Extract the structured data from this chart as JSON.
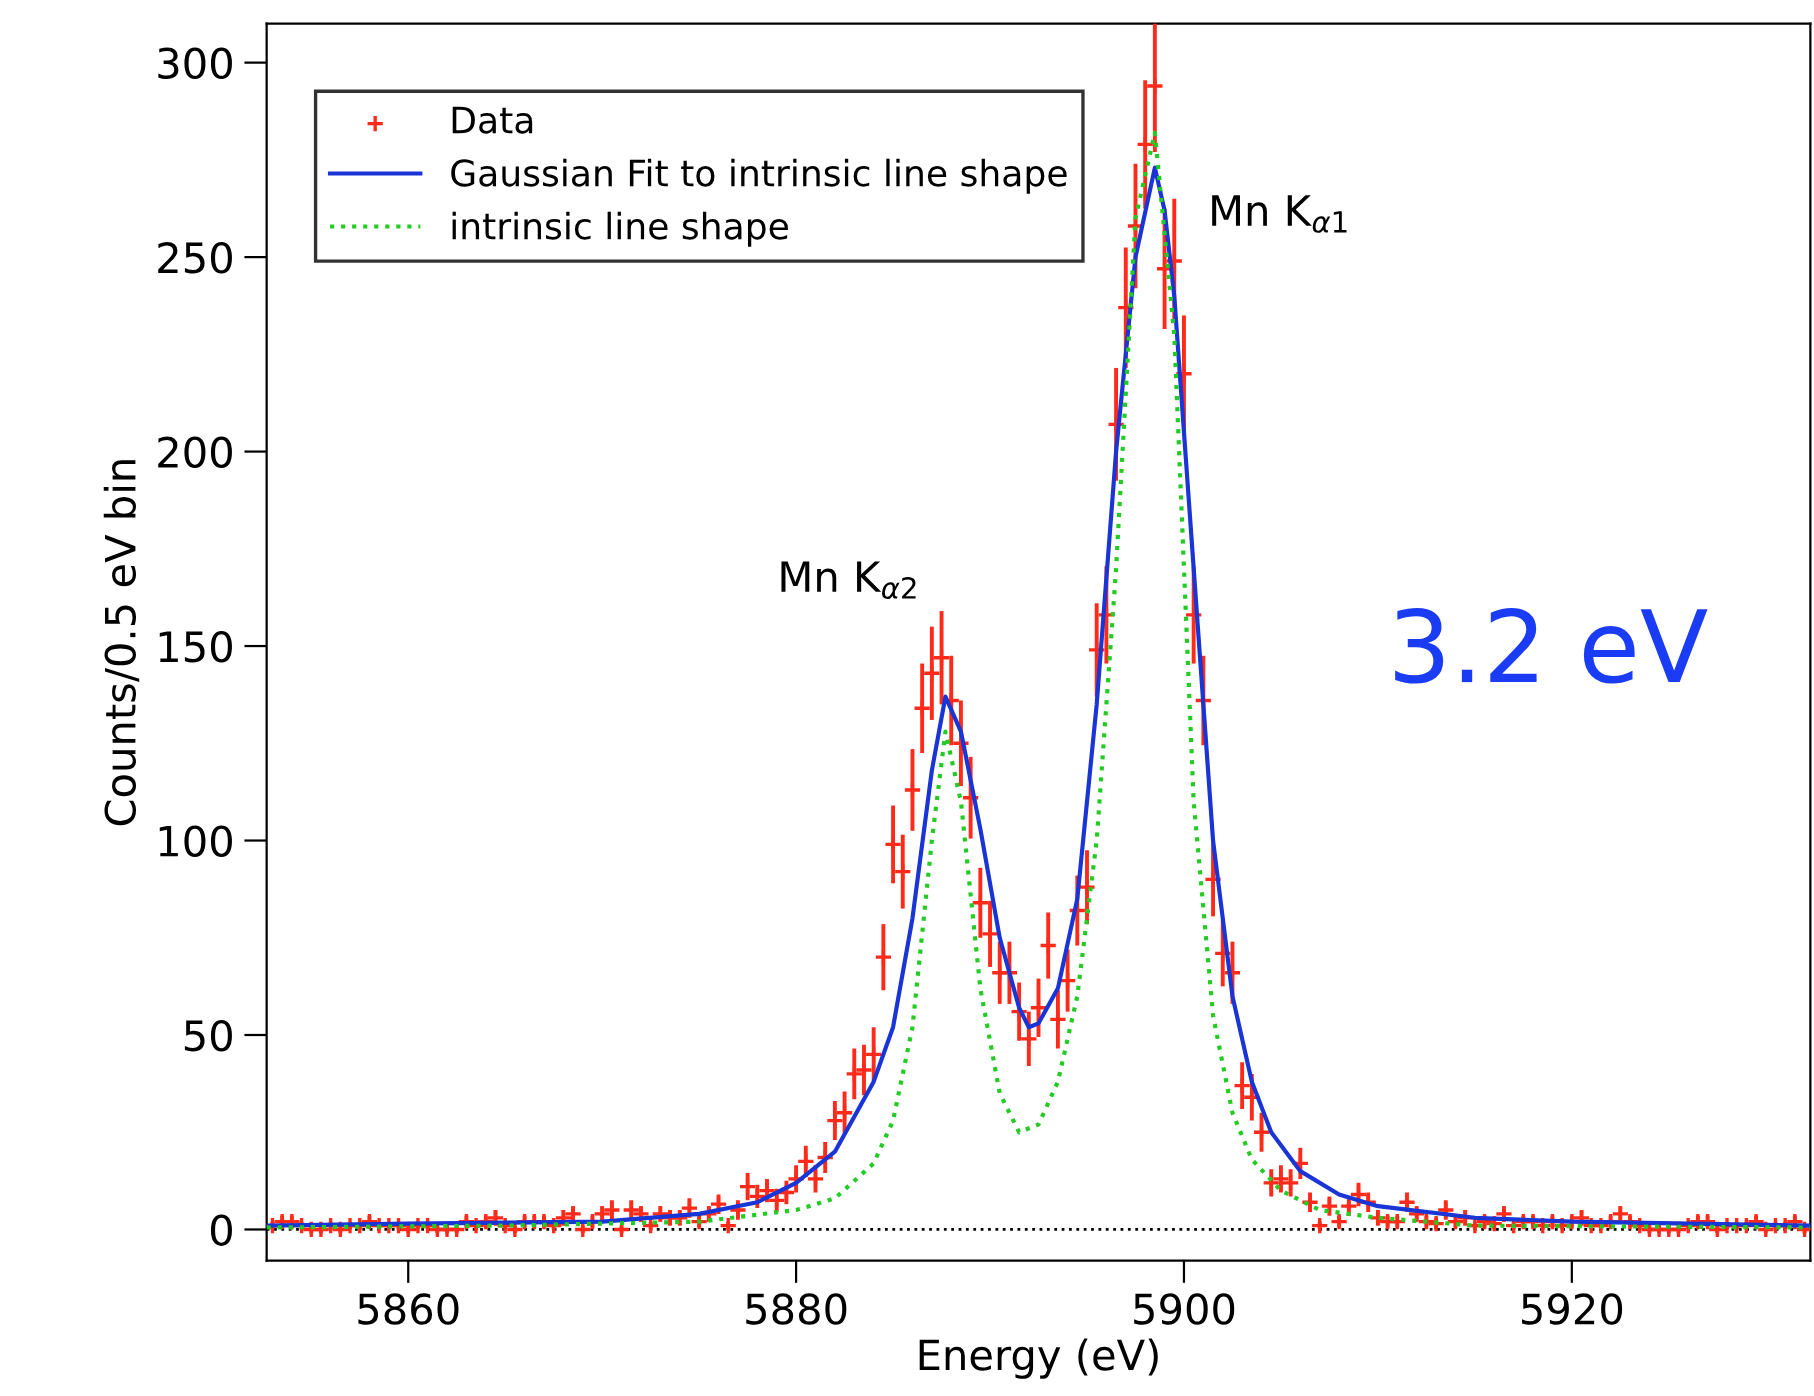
{
  "chart_data": {
    "type": "scatter",
    "xlabel": "Energy (eV)",
    "ylabel": "Counts/0.5 eV bin",
    "xlim": [
      5852.7,
      5932.3
    ],
    "ylim": [
      -8,
      310
    ],
    "xticks": [
      5860,
      5880,
      5900,
      5920
    ],
    "yticks": [
      0,
      50,
      100,
      150,
      200,
      250,
      300
    ],
    "grid": false,
    "legend": "top left",
    "ref_lines": [
      {
        "axis": "y",
        "value": 0,
        "label": null,
        "color": "#000000",
        "line_style": "dotted"
      }
    ],
    "annotations": [
      "Mn K$_{α2}$",
      "Mn K$_{α1}$",
      "3.2 eV"
    ],
    "series": [
      {
        "name": "Data",
        "marker": "cross",
        "color": "#ff2a1a",
        "x": [
          5853.0,
          5853.5,
          5854.0,
          5854.5,
          5855.0,
          5855.5,
          5856.0,
          5856.5,
          5857.0,
          5857.5,
          5858.0,
          5858.5,
          5859.0,
          5859.5,
          5860.0,
          5860.5,
          5861.0,
          5861.5,
          5862.0,
          5862.5,
          5863.0,
          5863.5,
          5864.0,
          5864.5,
          5865.0,
          5865.5,
          5866.0,
          5866.5,
          5867.0,
          5867.5,
          5868.0,
          5868.5,
          5869.0,
          5869.5,
          5870.0,
          5870.5,
          5871.0,
          5871.5,
          5872.0,
          5872.5,
          5873.0,
          5873.5,
          5874.0,
          5874.5,
          5875.0,
          5875.5,
          5876.0,
          5876.5,
          5877.0,
          5877.5,
          5878.0,
          5878.5,
          5879.0,
          5879.5,
          5880.0,
          5880.5,
          5881.0,
          5881.5,
          5882.0,
          5882.5,
          5883.0,
          5883.5,
          5884.0,
          5884.5,
          5885.0,
          5885.5,
          5886.0,
          5886.5,
          5887.0,
          5887.5,
          5888.0,
          5888.5,
          5889.0,
          5889.5,
          5890.0,
          5890.5,
          5891.0,
          5891.5,
          5892.0,
          5892.5,
          5893.0,
          5893.5,
          5894.0,
          5894.5,
          5895.0,
          5895.5,
          5896.0,
          5896.5,
          5897.0,
          5897.5,
          5898.0,
          5898.5,
          5899.0,
          5899.5,
          5900.0,
          5900.5,
          5901.0,
          5901.5,
          5902.0,
          5902.5,
          5903.0,
          5903.5,
          5904.0,
          5904.5,
          5905.0,
          5905.5,
          5906.0,
          5906.5,
          5907.0,
          5907.5,
          5908.0,
          5908.5,
          5909.0,
          5909.5,
          5910.0,
          5910.5,
          5911.0,
          5911.5,
          5912.0,
          5912.5,
          5913.0,
          5913.5,
          5914.0,
          5914.5,
          5915.0,
          5915.5,
          5916.0,
          5916.5,
          5917.0,
          5917.5,
          5918.0,
          5918.5,
          5919.0,
          5919.5,
          5920.0,
          5920.5,
          5921.0,
          5921.5,
          5922.0,
          5922.5,
          5923.0,
          5923.5,
          5924.0,
          5924.5,
          5925.0,
          5925.5,
          5926.0,
          5926.5,
          5927.0,
          5927.5,
          5928.0,
          5928.5,
          5929.0,
          5929.5,
          5930.0,
          5930.5,
          5931.0,
          5931.5,
          5932.0
        ],
        "values": [
          1,
          2,
          2,
          1,
          0,
          0,
          1,
          0,
          1,
          1,
          2,
          1,
          1,
          1,
          0,
          1,
          1,
          0,
          0,
          0,
          2,
          1,
          2,
          3,
          1,
          0,
          2,
          2,
          2,
          1,
          3,
          4,
          0,
          2,
          4,
          5,
          0,
          5,
          4,
          1,
          4,
          3,
          3,
          5.5,
          2,
          4,
          6.5,
          1,
          5,
          11,
          8.5,
          10,
          7.5,
          9.5,
          13,
          17.5,
          13,
          18.5,
          28,
          30,
          40,
          41,
          45,
          70,
          99,
          92,
          113,
          134,
          143,
          147,
          136,
          125,
          111,
          84,
          76,
          66,
          66,
          56,
          49,
          57,
          73,
          54,
          64,
          82,
          88,
          149,
          158,
          207,
          237,
          258,
          279,
          294,
          247,
          249,
          220,
          158,
          136,
          90,
          71,
          66,
          37,
          34,
          25,
          12,
          13,
          12,
          17,
          7,
          1,
          6,
          2,
          6,
          9,
          7,
          3,
          2,
          2,
          7,
          4,
          2,
          1.5,
          5,
          2,
          3,
          1,
          2,
          1.5,
          4,
          1,
          2,
          2,
          1,
          2,
          1,
          2,
          3,
          1,
          1,
          2,
          4,
          2,
          1,
          0,
          0,
          0,
          0,
          1,
          2,
          2,
          0,
          1,
          1,
          1,
          2,
          0,
          1,
          1,
          2,
          0
        ],
        "errors": [
          1,
          1.5,
          1.5,
          1,
          1,
          1,
          1,
          1,
          1,
          1,
          1.5,
          1,
          1,
          1,
          1,
          1,
          1,
          1,
          1,
          1,
          1.5,
          1,
          1.5,
          2,
          1,
          1,
          1.5,
          1.5,
          1.5,
          1,
          2,
          2,
          1,
          1.5,
          2,
          2.5,
          1,
          2.5,
          2,
          1,
          2,
          2,
          2,
          2.5,
          1.5,
          2,
          2.5,
          1,
          2.5,
          3.5,
          3,
          3,
          3,
          3,
          3.5,
          4,
          3.5,
          4,
          5,
          5.5,
          6.5,
          6.5,
          7,
          8.5,
          10,
          9.5,
          10.5,
          11.5,
          12,
          12,
          11.5,
          11,
          10.5,
          9,
          8.5,
          8,
          8,
          7.5,
          7,
          7.5,
          8.5,
          7.5,
          8,
          9,
          9.5,
          12,
          12.5,
          14.5,
          15.5,
          16,
          16.5,
          17,
          15.5,
          16,
          15,
          12.5,
          11.5,
          9.5,
          8.5,
          8,
          6,
          6,
          5,
          3.5,
          3.5,
          3.5,
          4,
          2.5,
          1,
          2.5,
          1.5,
          2.5,
          3,
          2.5,
          2,
          1.5,
          1.5,
          2.5,
          2,
          1.5,
          1.5,
          2.5,
          1.5,
          2,
          1,
          1.5,
          1.5,
          2,
          1,
          1.5,
          1.5,
          1,
          1.5,
          1,
          1.5,
          2,
          1,
          1,
          1.5,
          2,
          1.5,
          1,
          1,
          1,
          1,
          1,
          1,
          1.5,
          1.5,
          1,
          1,
          1,
          1,
          1.5,
          1,
          1,
          1,
          1.5,
          1
        ]
      },
      {
        "name": "Gaussian Fit to intrinsic line shape",
        "type": "line",
        "marker": "none",
        "line_style": "solid",
        "color": "#1a35d6",
        "x": [
          5852.7,
          5860,
          5870,
          5875,
          5878,
          5880,
          5882,
          5884,
          5885,
          5886,
          5887,
          5887.7,
          5888.5,
          5889.5,
          5890.5,
          5891.5,
          5892,
          5892.5,
          5893.5,
          5894.5,
          5895.5,
          5896.5,
          5897.5,
          5898.5,
          5899,
          5899.5,
          5900.5,
          5901.5,
          5902.5,
          5903.5,
          5904.5,
          5906,
          5908,
          5910,
          5915,
          5920,
          5932.3
        ],
        "values": [
          1,
          1.5,
          2,
          4,
          7,
          12,
          20,
          38,
          52,
          80,
          118,
          137,
          128,
          103,
          75,
          57,
          52,
          53,
          62,
          85,
          135,
          200,
          250,
          273,
          262,
          240,
          170,
          100,
          60,
          38,
          25,
          15,
          9,
          6,
          3,
          2,
          1
        ]
      },
      {
        "name": "intrinsic line shape",
        "type": "line",
        "marker": "none",
        "line_style": "dotted",
        "color": "#22cc22",
        "x": [
          5852.7,
          5865,
          5875,
          5880,
          5882,
          5884,
          5885,
          5886,
          5887,
          5887.7,
          5888.5,
          5889.5,
          5890.5,
          5891.5,
          5892.5,
          5893.5,
          5894.5,
          5895.5,
          5896.5,
          5897.5,
          5898.5,
          5899.5,
          5900.5,
          5901.5,
          5902.5,
          5903.5,
          5905,
          5907,
          5910,
          5915,
          5932.3
        ],
        "values": [
          0.5,
          1,
          2,
          5,
          8,
          17,
          28,
          52,
          100,
          128,
          110,
          62,
          35,
          25,
          27,
          38,
          60,
          100,
          170,
          260,
          282,
          230,
          110,
          55,
          30,
          18,
          10,
          5,
          3,
          1,
          0.5
        ]
      }
    ]
  }
}
